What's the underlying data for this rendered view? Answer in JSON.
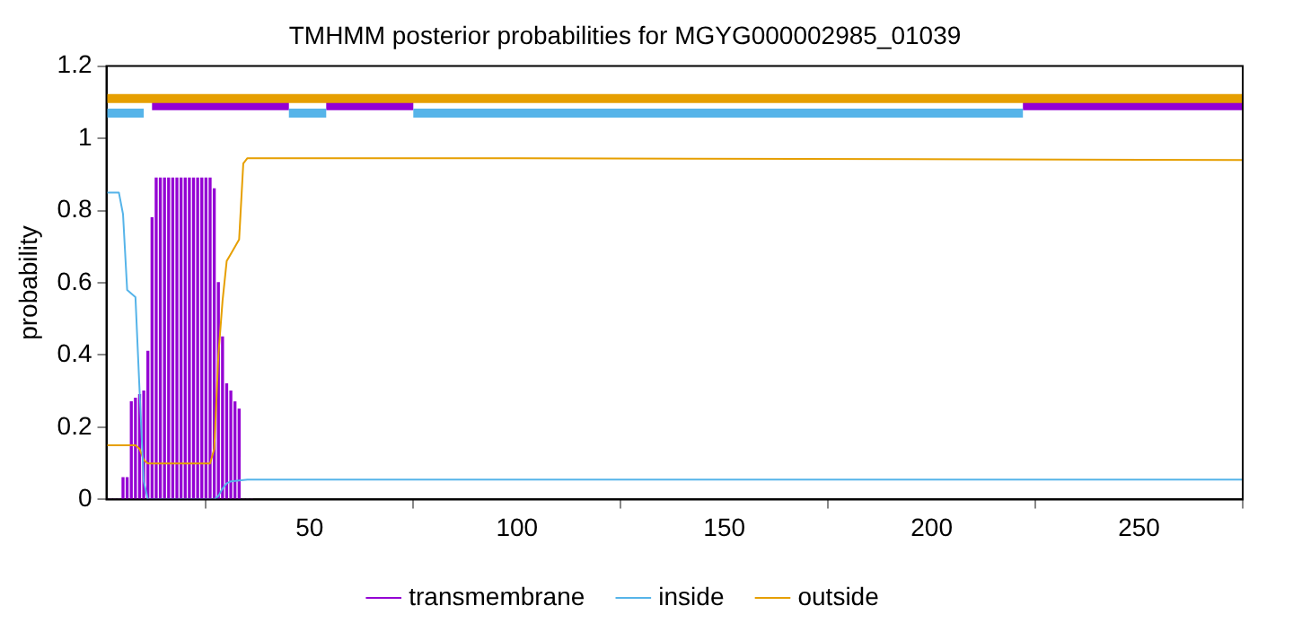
{
  "chart_data": {
    "type": "line",
    "title": "TMHMM posterior probabilities for MGYG000002985_01039",
    "ylabel": "probability",
    "xlim": [
      1,
      275
    ],
    "xticks": [
      50,
      100,
      150,
      200,
      250
    ],
    "ylim": [
      0,
      1.2
    ],
    "yticks": [
      0,
      0.2,
      0.4,
      0.6,
      0.8,
      1,
      1.2
    ],
    "grid": false,
    "legend": "bottom",
    "marker": "none",
    "series": [
      {
        "name": "transmembrane",
        "type": "bar",
        "color": "#9400d3",
        "x": [
          1,
          2,
          3,
          4,
          5,
          6,
          7,
          8,
          9,
          10,
          11,
          12,
          13,
          14,
          15,
          16,
          17,
          18,
          19,
          20,
          21,
          22,
          23,
          24,
          25,
          26,
          27,
          28,
          29,
          30,
          31,
          32,
          33,
          34,
          35,
          36
        ],
        "values": [
          0,
          0,
          0,
          0,
          0.06,
          0.06,
          0.27,
          0.28,
          0.29,
          0.3,
          0.41,
          0.78,
          0.89,
          0.89,
          0.89,
          0.89,
          0.89,
          0.89,
          0.89,
          0.89,
          0.89,
          0.89,
          0.89,
          0.89,
          0.89,
          0.89,
          0.86,
          0.6,
          0.45,
          0.32,
          0.3,
          0.27,
          0.25,
          0,
          0,
          0
        ]
      },
      {
        "name": "inside",
        "color": "#56b4e9",
        "x": [
          1,
          4,
          5,
          6,
          8,
          9,
          10,
          11,
          27,
          28,
          29,
          30,
          31,
          35,
          275
        ],
        "values": [
          0.85,
          0.85,
          0.79,
          0.58,
          0.56,
          0.3,
          0.05,
          0,
          0,
          0.01,
          0.03,
          0.045,
          0.05,
          0.055,
          0.055
        ]
      },
      {
        "name": "outside",
        "color": "#e69f00",
        "x": [
          1,
          8,
          9,
          10,
          11,
          26,
          27,
          28,
          29,
          30,
          33,
          34,
          35,
          100,
          275
        ],
        "values": [
          0.15,
          0.15,
          0.14,
          0.11,
          0.1,
          0.1,
          0.14,
          0.4,
          0.55,
          0.66,
          0.72,
          0.93,
          0.945,
          0.945,
          0.94
        ]
      },
      {
        "color": "#e69f00",
        "x": [
          1,
          275
        ],
        "values": [
          1.11,
          1.11
        ]
      },
      {
        "color": "#56b4e9",
        "x": [
          1,
          10
        ],
        "values": [
          1.07,
          1.07
        ]
      },
      {
        "color": "#56b4e9",
        "x": [
          45,
          54
        ],
        "values": [
          1.07,
          1.07
        ]
      },
      {
        "color": "#56b4e9",
        "x": [
          75,
          222
        ],
        "values": [
          1.07,
          1.07
        ]
      },
      {
        "color": "#9400d3",
        "x": [
          12,
          45
        ],
        "values": [
          1.09,
          1.09
        ]
      },
      {
        "color": "#9400d3",
        "x": [
          54,
          75
        ],
        "values": [
          1.09,
          1.09
        ]
      },
      {
        "color": "#9400d3",
        "x": [
          222,
          275
        ],
        "values": [
          1.09,
          1.09
        ]
      }
    ]
  }
}
